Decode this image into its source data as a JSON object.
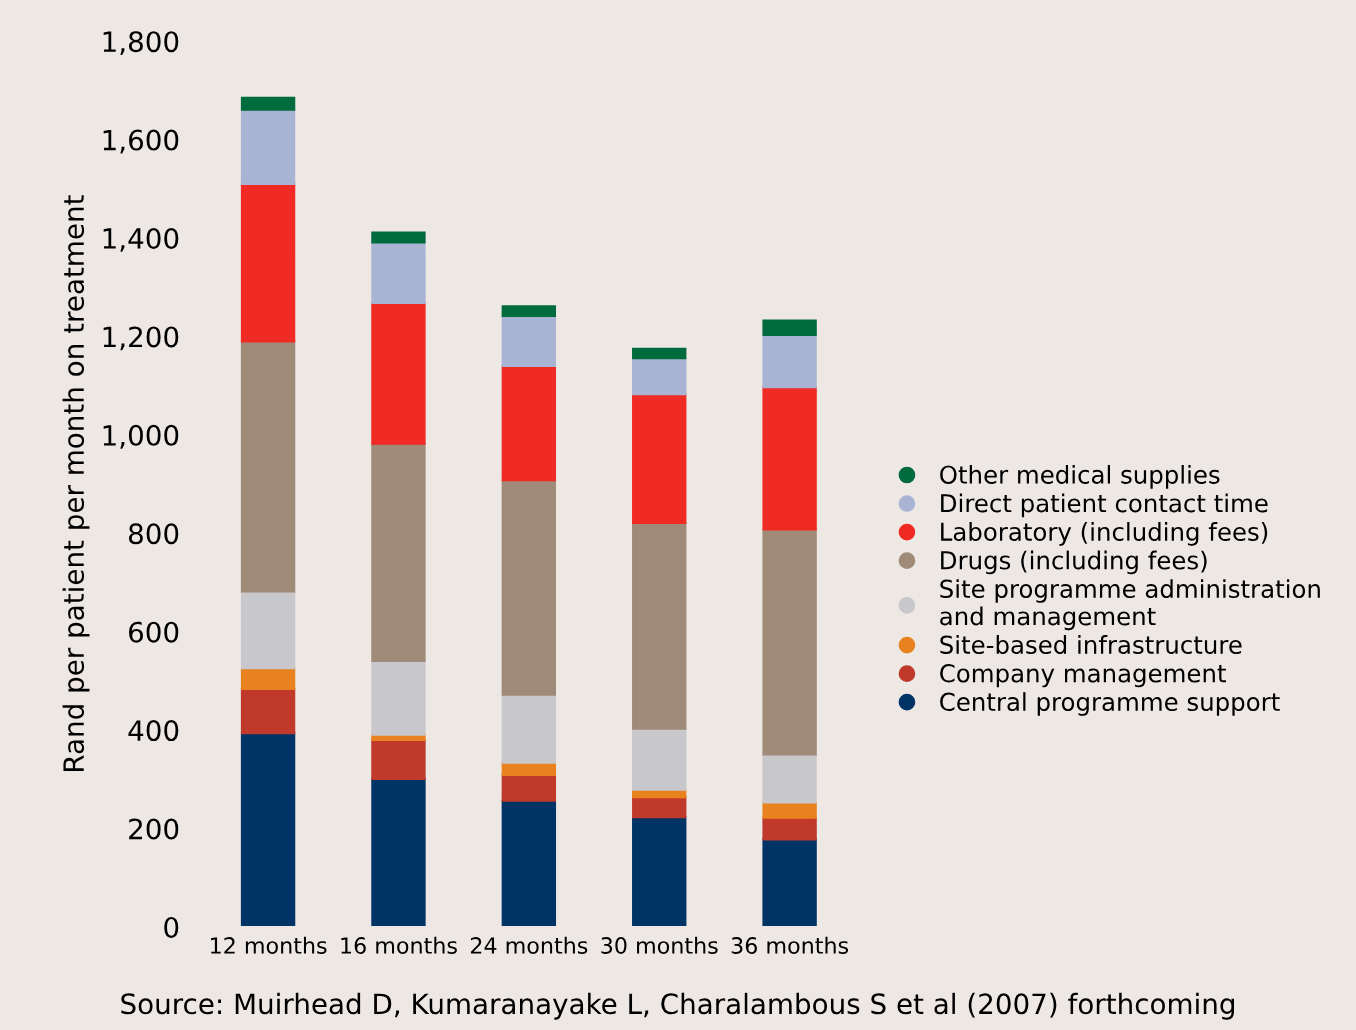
{
  "chart_data": {
    "type": "bar",
    "stacked": true,
    "ylabel": "Rand per patient per month on treatment",
    "categories": [
      "12 months",
      "16 months",
      "24 months",
      "30 months",
      "36 months"
    ],
    "series": [
      {
        "name": "Central programme support",
        "color": "#003366",
        "values": [
          394,
          301,
          257,
          223,
          178
        ]
      },
      {
        "name": "Company management",
        "color": "#c0392b",
        "values": [
          90,
          79,
          52,
          41,
          44
        ]
      },
      {
        "name": "Site-based infrastructure",
        "color": "#e8821e",
        "values": [
          42,
          11,
          25,
          15,
          31
        ]
      },
      {
        "name": "Site programme administration\nand management",
        "color": "#c8c8cc",
        "values": [
          156,
          150,
          138,
          124,
          98
        ]
      },
      {
        "name": "Drugs (including fees)",
        "color": "#a08a78",
        "values": [
          508,
          441,
          436,
          418,
          457
        ]
      },
      {
        "name": "Laboratory (including fees)",
        "color": "#f02a24",
        "values": [
          320,
          286,
          232,
          262,
          289
        ]
      },
      {
        "name": "Direct patient contact time",
        "color": "#a9b4d4",
        "values": [
          151,
          123,
          102,
          73,
          106
        ]
      },
      {
        "name": "Other medical supplies",
        "color": "#006b3c",
        "values": [
          24,
          20,
          19,
          19,
          29
        ]
      }
    ],
    "ylim": [
      0,
      1800
    ],
    "yticks": [
      0,
      {
        "value": 200,
        "label": "200"
      },
      {
        "value": 400,
        "label": "400"
      },
      {
        "value": 600,
        "label": "600"
      },
      {
        "value": 800,
        "label": "800"
      },
      {
        "value": 1000,
        "label": "1,000"
      },
      {
        "value": 1200,
        "label": "1,200"
      },
      {
        "value": 1400,
        "label": "1,400"
      },
      {
        "value": 1600,
        "label": "1,600"
      },
      {
        "value": 1800,
        "label": "1,800"
      }
    ],
    "grid": false,
    "legend": "right",
    "marker": "circle",
    "annotations": [
      "Source: Muirhead D, Kumaranayake L, Charalambous S et al (2007) forthcoming"
    ]
  }
}
